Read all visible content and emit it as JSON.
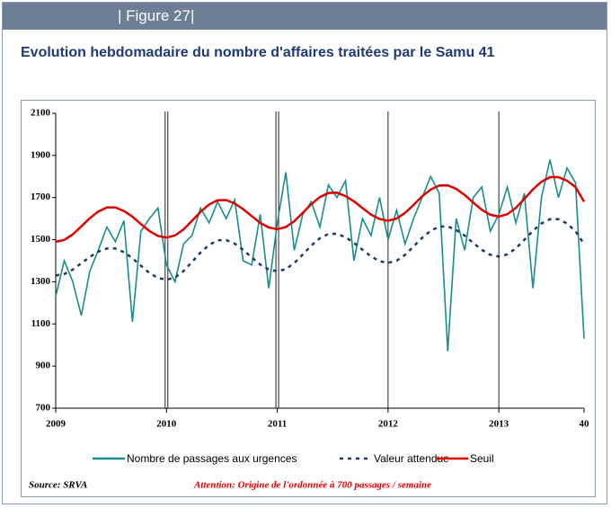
{
  "header": "| Figure 27|",
  "chart_data": {
    "type": "line",
    "title": "Evolution  hebdomadaire du nombre d'affaires traitées par le Samu 41",
    "source": "Source: SRVA",
    "note": "Attention: Origine de l'ordonnée à 700 passages / semaine",
    "x": [
      0,
      4,
      8,
      12,
      16,
      20,
      24,
      28,
      32,
      36,
      40,
      44,
      48,
      52,
      56,
      60,
      64,
      68,
      72,
      76,
      80,
      84,
      88,
      92,
      96,
      100,
      104,
      108,
      112,
      116,
      120,
      124,
      128,
      132,
      136,
      140,
      144,
      148,
      152,
      156,
      160,
      164,
      168,
      172,
      176,
      180,
      184,
      188,
      192,
      196,
      200,
      204,
      208,
      212,
      216,
      220,
      224,
      228,
      232,
      236,
      240,
      244,
      248
    ],
    "xlim": [
      0,
      248
    ],
    "xticks": [
      {
        "value": 0,
        "label": "2009"
      },
      {
        "value": 52,
        "label": "2010"
      },
      {
        "value": 104,
        "label": "2011"
      },
      {
        "value": 156,
        "label": "2012"
      },
      {
        "value": 208,
        "label": "2013"
      },
      {
        "value": 248,
        "label": "40"
      }
    ],
    "ylim": [
      700,
      2100
    ],
    "yticks": [
      700,
      900,
      1100,
      1300,
      1500,
      1700,
      1900,
      2100
    ],
    "year_lines": true,
    "series": [
      {
        "name": "Nombre de passages aux urgences",
        "color": "#1a8c8c",
        "style": "solid",
        "values": [
          1230,
          1400,
          1300,
          1140,
          1350,
          1450,
          1560,
          1490,
          1590,
          1110,
          1540,
          1600,
          1650,
          1380,
          1300,
          1480,
          1520,
          1650,
          1580,
          1680,
          1600,
          1690,
          1400,
          1380,
          1620,
          1270,
          1580,
          1820,
          1450,
          1620,
          1680,
          1560,
          1760,
          1700,
          1780,
          1400,
          1600,
          1520,
          1700,
          1500,
          1640,
          1480,
          1600,
          1700,
          1800,
          1720,
          970,
          1600,
          1450,
          1700,
          1750,
          1540,
          1620,
          1750,
          1580,
          1720,
          1270,
          1700,
          1880,
          1700,
          1840,
          1770,
          1030
        ]
      },
      {
        "name": "Valeur attendue",
        "color": "#1f3864",
        "style": "dashed",
        "values": [
          1330,
          1337,
          1358,
          1388,
          1418,
          1443,
          1458,
          1458,
          1441,
          1412,
          1376,
          1342,
          1318,
          1310,
          1321,
          1351,
          1394,
          1439,
          1475,
          1497,
          1498,
          1481,
          1452,
          1416,
          1382,
          1358,
          1350,
          1360,
          1389,
          1430,
          1472,
          1507,
          1527,
          1528,
          1512,
          1485,
          1452,
          1421,
          1398,
          1390,
          1400,
          1428,
          1468,
          1509,
          1542,
          1562,
          1563,
          1546,
          1519,
          1484,
          1452,
          1428,
          1420,
          1430,
          1459,
          1500,
          1542,
          1577,
          1597,
          1597,
          1577,
          1540,
          1480
        ]
      },
      {
        "name": "Seuil",
        "color": "#e00000",
        "style": "solid",
        "values": [
          1490,
          1499,
          1525,
          1563,
          1602,
          1634,
          1653,
          1653,
          1636,
          1609,
          1574,
          1541,
          1518,
          1510,
          1520,
          1549,
          1590,
          1632,
          1667,
          1687,
          1688,
          1672,
          1645,
          1612,
          1580,
          1558,
          1550,
          1560,
          1588,
          1628,
          1669,
          1702,
          1722,
          1723,
          1707,
          1682,
          1650,
          1619,
          1598,
          1590,
          1600,
          1627,
          1665,
          1706,
          1738,
          1757,
          1758,
          1741,
          1712,
          1676,
          1642,
          1618,
          1610,
          1621,
          1651,
          1694,
          1739,
          1775,
          1797,
          1797,
          1780,
          1750,
          1680
        ]
      }
    ]
  }
}
